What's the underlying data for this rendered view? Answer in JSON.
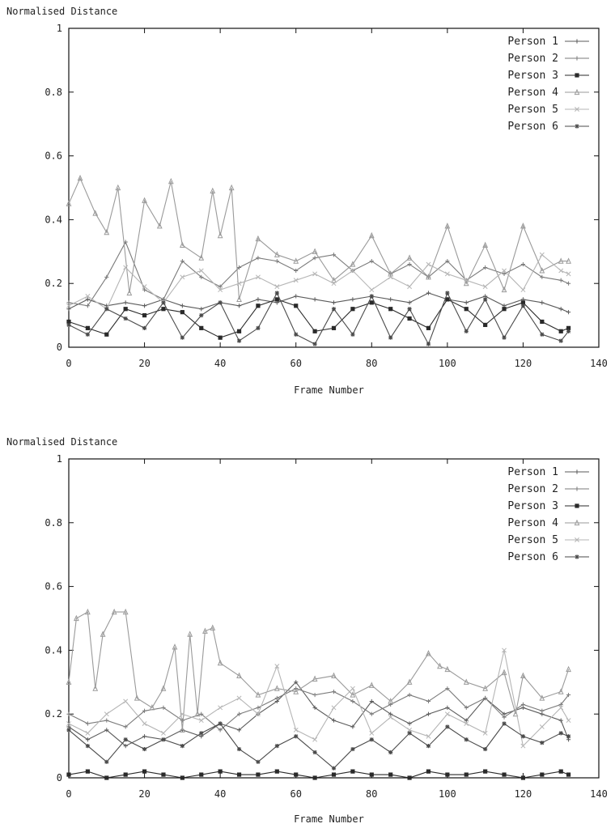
{
  "chart_data": [
    {
      "type": "line",
      "ylabel": "Normalised Distance",
      "xlabel": "Frame Number",
      "xlim": [
        0,
        140
      ],
      "ylim": [
        0,
        1
      ],
      "xticks": [
        0,
        20,
        40,
        60,
        80,
        100,
        120,
        140
      ],
      "yticks": [
        0,
        0.2,
        0.4,
        0.6,
        0.8,
        1
      ],
      "ytick_labels": [
        "0",
        "0.2",
        "0.4",
        "0.6",
        "0.8",
        "1"
      ],
      "legend_position": "top-right",
      "grid": false,
      "series": [
        {
          "name": "Person 1",
          "color": "#5a5a5a",
          "marker": "plus",
          "x": [
            0,
            5,
            10,
            15,
            20,
            25,
            30,
            35,
            40,
            45,
            50,
            55,
            60,
            65,
            70,
            75,
            80,
            85,
            90,
            95,
            100,
            105,
            110,
            115,
            120,
            125,
            130,
            132
          ],
          "values": [
            0.12,
            0.15,
            0.13,
            0.14,
            0.13,
            0.15,
            0.13,
            0.12,
            0.14,
            0.13,
            0.15,
            0.14,
            0.16,
            0.15,
            0.14,
            0.15,
            0.16,
            0.15,
            0.14,
            0.17,
            0.15,
            0.14,
            0.16,
            0.13,
            0.15,
            0.14,
            0.12,
            0.11
          ]
        },
        {
          "name": "Person 2",
          "color": "#7a7a7a",
          "marker": "cross",
          "x": [
            0,
            5,
            10,
            15,
            20,
            25,
            30,
            35,
            40,
            45,
            50,
            55,
            60,
            65,
            70,
            75,
            80,
            85,
            90,
            95,
            100,
            105,
            110,
            115,
            120,
            125,
            130,
            132
          ],
          "values": [
            0.14,
            0.13,
            0.22,
            0.33,
            0.18,
            0.15,
            0.27,
            0.22,
            0.19,
            0.25,
            0.28,
            0.27,
            0.24,
            0.28,
            0.29,
            0.24,
            0.27,
            0.23,
            0.26,
            0.22,
            0.27,
            0.21,
            0.25,
            0.23,
            0.26,
            0.22,
            0.21,
            0.2
          ]
        },
        {
          "name": "Person 3",
          "color": "#2a2a2a",
          "marker": "square",
          "x": [
            0,
            5,
            10,
            15,
            20,
            25,
            30,
            35,
            40,
            45,
            50,
            55,
            60,
            65,
            70,
            75,
            80,
            85,
            90,
            95,
            100,
            105,
            110,
            115,
            120,
            125,
            130,
            132
          ],
          "values": [
            0.08,
            0.06,
            0.04,
            0.12,
            0.1,
            0.12,
            0.11,
            0.06,
            0.03,
            0.05,
            0.13,
            0.15,
            0.13,
            0.05,
            0.06,
            0.12,
            0.14,
            0.12,
            0.09,
            0.06,
            0.15,
            0.12,
            0.07,
            0.12,
            0.14,
            0.08,
            0.05,
            0.06
          ]
        },
        {
          "name": "Person 4",
          "color": "#9a9a9a",
          "marker": "triangle",
          "x": [
            0,
            3,
            7,
            10,
            13,
            16,
            20,
            24,
            27,
            30,
            35,
            38,
            40,
            43,
            45,
            50,
            55,
            60,
            65,
            70,
            75,
            80,
            85,
            90,
            95,
            100,
            105,
            110,
            115,
            120,
            125,
            130,
            132
          ],
          "values": [
            0.45,
            0.53,
            0.42,
            0.36,
            0.5,
            0.17,
            0.46,
            0.38,
            0.52,
            0.32,
            0.28,
            0.49,
            0.35,
            0.5,
            0.15,
            0.34,
            0.29,
            0.27,
            0.3,
            0.21,
            0.26,
            0.35,
            0.23,
            0.28,
            0.22,
            0.38,
            0.2,
            0.32,
            0.18,
            0.38,
            0.24,
            0.27,
            0.27
          ]
        },
        {
          "name": "Person 5",
          "color": "#b5b5b5",
          "marker": "x",
          "x": [
            0,
            5,
            10,
            15,
            20,
            25,
            30,
            35,
            40,
            45,
            50,
            55,
            60,
            65,
            70,
            75,
            80,
            85,
            90,
            95,
            100,
            105,
            110,
            115,
            120,
            125,
            130,
            132
          ],
          "values": [
            0.13,
            0.16,
            0.12,
            0.25,
            0.19,
            0.14,
            0.22,
            0.24,
            0.18,
            0.2,
            0.22,
            0.19,
            0.21,
            0.23,
            0.2,
            0.24,
            0.18,
            0.22,
            0.19,
            0.26,
            0.23,
            0.21,
            0.19,
            0.24,
            0.18,
            0.29,
            0.24,
            0.23
          ]
        },
        {
          "name": "Person 6",
          "color": "#4a4a4a",
          "marker": "star",
          "x": [
            0,
            5,
            10,
            15,
            20,
            25,
            30,
            35,
            40,
            45,
            50,
            55,
            60,
            65,
            70,
            75,
            80,
            85,
            90,
            95,
            100,
            105,
            110,
            115,
            120,
            125,
            130,
            132
          ],
          "values": [
            0.07,
            0.04,
            0.12,
            0.09,
            0.06,
            0.14,
            0.03,
            0.1,
            0.14,
            0.02,
            0.06,
            0.17,
            0.04,
            0.01,
            0.12,
            0.04,
            0.16,
            0.03,
            0.12,
            0.01,
            0.17,
            0.05,
            0.15,
            0.03,
            0.13,
            0.04,
            0.02,
            0.05
          ]
        }
      ]
    },
    {
      "type": "line",
      "ylabel": "Normalised Distance",
      "xlabel": "Frame Number",
      "xlim": [
        0,
        140
      ],
      "ylim": [
        0,
        1
      ],
      "xticks": [
        0,
        20,
        40,
        60,
        80,
        100,
        120,
        140
      ],
      "yticks": [
        0,
        0.2,
        0.4,
        0.6,
        0.8,
        1
      ],
      "ytick_labels": [
        "0",
        "0.2",
        "0.4",
        "0.6",
        "0.8",
        "1"
      ],
      "legend_position": "top-right",
      "grid": false,
      "series": [
        {
          "name": "Person 1",
          "color": "#5a5a5a",
          "marker": "plus",
          "x": [
            0,
            5,
            10,
            15,
            20,
            25,
            30,
            35,
            40,
            45,
            50,
            55,
            60,
            65,
            70,
            75,
            80,
            85,
            90,
            95,
            100,
            105,
            110,
            115,
            120,
            125,
            130,
            132
          ],
          "values": [
            0.16,
            0.12,
            0.15,
            0.1,
            0.13,
            0.12,
            0.15,
            0.13,
            0.17,
            0.15,
            0.2,
            0.24,
            0.3,
            0.22,
            0.18,
            0.16,
            0.24,
            0.2,
            0.17,
            0.2,
            0.22,
            0.18,
            0.25,
            0.2,
            0.22,
            0.2,
            0.18,
            0.12
          ]
        },
        {
          "name": "Person 2",
          "color": "#7a7a7a",
          "marker": "cross",
          "x": [
            0,
            5,
            10,
            15,
            20,
            25,
            30,
            35,
            40,
            45,
            50,
            55,
            60,
            65,
            70,
            75,
            80,
            85,
            90,
            95,
            100,
            105,
            110,
            115,
            120,
            125,
            130,
            132
          ],
          "values": [
            0.2,
            0.17,
            0.18,
            0.16,
            0.21,
            0.22,
            0.18,
            0.2,
            0.15,
            0.2,
            0.22,
            0.25,
            0.28,
            0.26,
            0.27,
            0.24,
            0.2,
            0.23,
            0.26,
            0.24,
            0.28,
            0.22,
            0.25,
            0.19,
            0.23,
            0.21,
            0.23,
            0.26
          ]
        },
        {
          "name": "Person 3",
          "color": "#2a2a2a",
          "marker": "square",
          "x": [
            0,
            5,
            10,
            15,
            20,
            25,
            30,
            35,
            40,
            45,
            50,
            55,
            60,
            65,
            70,
            75,
            80,
            85,
            90,
            95,
            100,
            105,
            110,
            115,
            120,
            125,
            130,
            132
          ],
          "values": [
            0.01,
            0.02,
            0.0,
            0.01,
            0.02,
            0.01,
            0.0,
            0.01,
            0.02,
            0.01,
            0.01,
            0.02,
            0.01,
            0.0,
            0.01,
            0.02,
            0.01,
            0.01,
            0.0,
            0.02,
            0.01,
            0.01,
            0.02,
            0.01,
            0.0,
            0.01,
            0.02,
            0.01
          ]
        },
        {
          "name": "Person 4",
          "color": "#9a9a9a",
          "marker": "triangle",
          "x": [
            0,
            2,
            5,
            7,
            9,
            12,
            15,
            18,
            22,
            25,
            28,
            30,
            32,
            34,
            36,
            38,
            40,
            45,
            50,
            55,
            60,
            65,
            70,
            75,
            80,
            85,
            90,
            95,
            98,
            100,
            105,
            110,
            115,
            118,
            120,
            125,
            130,
            132
          ],
          "values": [
            0.3,
            0.5,
            0.52,
            0.28,
            0.45,
            0.52,
            0.52,
            0.25,
            0.22,
            0.28,
            0.41,
            0.15,
            0.45,
            0.2,
            0.46,
            0.47,
            0.36,
            0.32,
            0.26,
            0.28,
            0.27,
            0.31,
            0.32,
            0.26,
            0.29,
            0.24,
            0.3,
            0.39,
            0.35,
            0.34,
            0.3,
            0.28,
            0.33,
            0.2,
            0.32,
            0.25,
            0.27,
            0.34
          ]
        },
        {
          "name": "Person 5",
          "color": "#b5b5b5",
          "marker": "x",
          "x": [
            0,
            5,
            10,
            15,
            20,
            25,
            30,
            35,
            40,
            45,
            50,
            55,
            60,
            65,
            70,
            75,
            80,
            85,
            90,
            95,
            100,
            105,
            110,
            115,
            120,
            125,
            130,
            132
          ],
          "values": [
            0.17,
            0.14,
            0.2,
            0.24,
            0.17,
            0.14,
            0.2,
            0.18,
            0.22,
            0.25,
            0.2,
            0.35,
            0.15,
            0.12,
            0.22,
            0.28,
            0.14,
            0.19,
            0.15,
            0.13,
            0.2,
            0.17,
            0.14,
            0.4,
            0.1,
            0.16,
            0.22,
            0.18
          ]
        },
        {
          "name": "Person 6",
          "color": "#4a4a4a",
          "marker": "star",
          "x": [
            0,
            5,
            10,
            15,
            20,
            25,
            30,
            35,
            40,
            45,
            50,
            55,
            60,
            65,
            70,
            75,
            80,
            85,
            90,
            95,
            100,
            105,
            110,
            115,
            120,
            125,
            130,
            132
          ],
          "values": [
            0.15,
            0.1,
            0.05,
            0.12,
            0.09,
            0.12,
            0.1,
            0.14,
            0.17,
            0.09,
            0.05,
            0.1,
            0.13,
            0.08,
            0.03,
            0.09,
            0.12,
            0.08,
            0.14,
            0.1,
            0.16,
            0.12,
            0.09,
            0.17,
            0.13,
            0.11,
            0.14,
            0.13
          ]
        }
      ]
    }
  ]
}
